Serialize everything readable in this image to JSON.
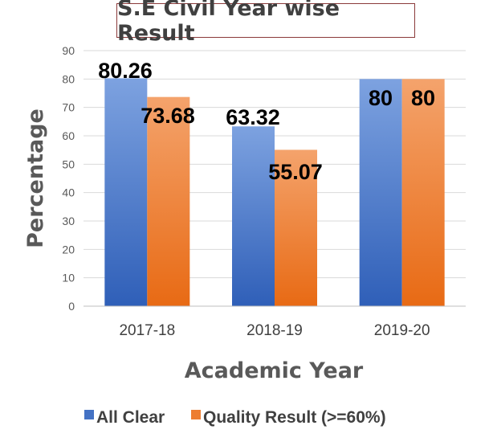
{
  "chart_data": {
    "type": "bar",
    "title": "S.E Civil Year wise Result",
    "xlabel": "Academic Year",
    "ylabel": "Percentage",
    "categories": [
      "2017-18",
      "2018-19",
      "2019-20"
    ],
    "series": [
      {
        "name": "All Clear",
        "values": [
          80.26,
          63.32,
          80
        ],
        "labels": [
          "80.26",
          "63.32",
          "80"
        ],
        "color": "#4472c4"
      },
      {
        "name": "Quality Result (>=60%)",
        "values": [
          73.68,
          55.07,
          80
        ],
        "labels": [
          "73.68",
          "55.07",
          "80"
        ],
        "color": "#ed7d31"
      }
    ],
    "yticks": [
      "0",
      "10",
      "20",
      "30",
      "40",
      "50",
      "60",
      "70",
      "80",
      "90"
    ],
    "ylim": [
      0,
      90
    ],
    "grid": true,
    "legend": "bottom"
  }
}
